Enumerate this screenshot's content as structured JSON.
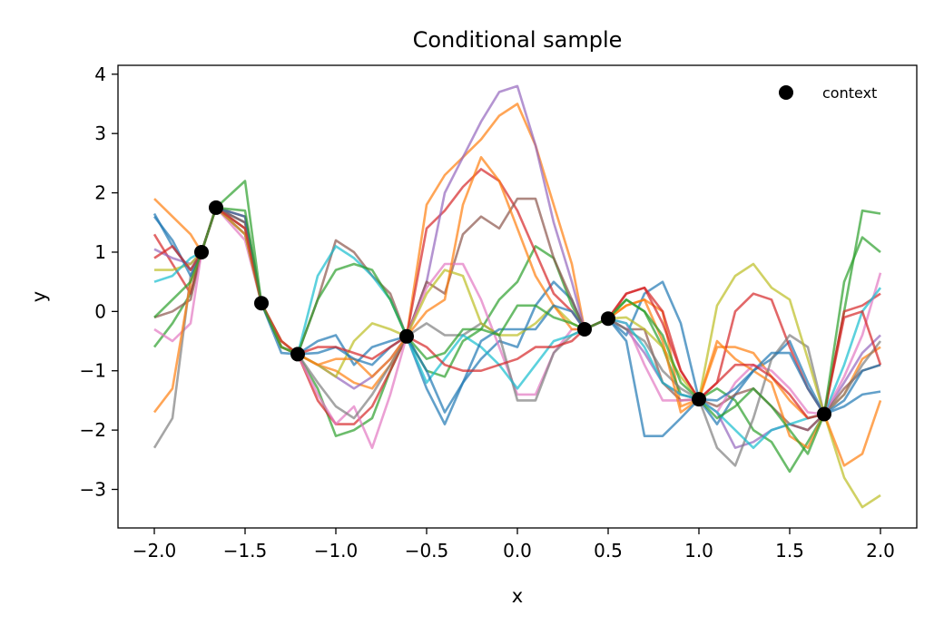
{
  "chart_data": {
    "type": "line",
    "title": "Conditional sample",
    "xlabel": "x",
    "ylabel": "y",
    "xlim": [
      -2.2,
      2.2
    ],
    "ylim": [
      -3.65,
      4.15
    ],
    "xticks": [
      -2.0,
      -1.5,
      -1.0,
      -0.5,
      0.0,
      0.5,
      1.0,
      1.5,
      2.0
    ],
    "xtick_labels": [
      "−2.0",
      "−1.5",
      "−1.0",
      "−0.5",
      "0.0",
      "0.5",
      "1.0",
      "1.5",
      "2.0"
    ],
    "yticks": [
      -3,
      -2,
      -1,
      0,
      1,
      2,
      3,
      4
    ],
    "ytick_labels": [
      "−3",
      "−2",
      "−1",
      "0",
      "1",
      "2",
      "3",
      "4"
    ],
    "grid": false,
    "legend": {
      "position": "top-right",
      "entries": [
        {
          "label": "context",
          "color": "#000000",
          "marker": "circle"
        }
      ]
    },
    "context_points": {
      "x": [
        -1.74,
        -1.66,
        -1.41,
        -1.21,
        -0.61,
        0.37,
        0.5,
        1.0,
        1.69
      ],
      "y": [
        1.0,
        1.75,
        0.14,
        -0.72,
        -0.42,
        -0.3,
        -0.12,
        -1.48,
        -1.73
      ]
    },
    "x": [
      -2.0,
      -1.9,
      -1.8,
      -1.74,
      -1.66,
      -1.5,
      -1.41,
      -1.3,
      -1.21,
      -1.1,
      -1.0,
      -0.9,
      -0.8,
      -0.7,
      -0.61,
      -0.5,
      -0.4,
      -0.3,
      -0.2,
      -0.1,
      0.0,
      0.1,
      0.2,
      0.3,
      0.37,
      0.5,
      0.6,
      0.7,
      0.8,
      0.9,
      1.0,
      1.1,
      1.2,
      1.3,
      1.4,
      1.5,
      1.6,
      1.69,
      1.8,
      1.9,
      2.0
    ],
    "series": [
      {
        "color": "#1f77b4",
        "values": [
          1.65,
          1.1,
          0.7,
          1.0,
          1.75,
          1.5,
          0.14,
          -0.6,
          -0.72,
          -0.5,
          -0.4,
          -0.9,
          -0.6,
          -0.5,
          -0.42,
          -1.3,
          -1.9,
          -1.2,
          -0.8,
          -0.5,
          -0.6,
          0.1,
          0.5,
          0.2,
          -0.3,
          -0.12,
          -0.4,
          0.3,
          0.5,
          -0.2,
          -1.48,
          -1.9,
          -1.4,
          -1.0,
          -0.8,
          -0.5,
          -1.2,
          -1.73,
          -1.6,
          -1.4,
          -1.35
        ]
      },
      {
        "color": "#ff7f0e",
        "values": [
          1.9,
          1.6,
          1.3,
          1.0,
          1.75,
          1.4,
          0.14,
          -0.5,
          -0.72,
          -0.9,
          -1.0,
          -1.2,
          -1.3,
          -0.9,
          -0.42,
          1.8,
          2.3,
          2.6,
          2.9,
          3.3,
          3.5,
          2.8,
          1.8,
          0.8,
          -0.3,
          -0.12,
          0.1,
          0.2,
          0.0,
          -1.6,
          -1.48,
          -0.6,
          -0.6,
          -0.7,
          -1.1,
          -1.5,
          -1.8,
          -1.73,
          -1.4,
          -0.8,
          -0.6
        ]
      },
      {
        "color": "#2ca02c",
        "values": [
          -0.6,
          -0.2,
          0.3,
          1.0,
          1.75,
          2.2,
          0.14,
          -0.6,
          -0.72,
          -1.3,
          -2.1,
          -2.0,
          -1.8,
          -1.0,
          -0.42,
          -1.0,
          -1.1,
          -0.5,
          -0.3,
          0.2,
          0.5,
          1.1,
          0.9,
          0.1,
          -0.3,
          -0.12,
          0.2,
          0.0,
          -0.6,
          -1.4,
          -1.48,
          -1.3,
          -1.5,
          -2.0,
          -2.2,
          -2.7,
          -2.2,
          -1.73,
          0.0,
          1.7,
          1.65
        ]
      },
      {
        "color": "#d62728",
        "values": [
          1.3,
          0.8,
          0.3,
          1.0,
          1.75,
          1.6,
          0.14,
          -0.6,
          -0.72,
          -1.5,
          -1.9,
          -1.9,
          -1.6,
          -1.0,
          -0.42,
          1.4,
          1.7,
          2.1,
          2.4,
          2.2,
          1.7,
          1.0,
          0.3,
          0.0,
          -0.3,
          -0.12,
          0.3,
          0.4,
          0.0,
          -1.0,
          -1.48,
          -1.2,
          0.0,
          0.3,
          0.2,
          -0.6,
          -1.3,
          -1.73,
          0.0,
          0.1,
          0.3
        ]
      },
      {
        "color": "#9467bd",
        "values": [
          1.05,
          0.9,
          0.8,
          1.0,
          1.75,
          1.3,
          0.14,
          -0.5,
          -0.72,
          -0.9,
          -1.1,
          -1.3,
          -1.1,
          -0.8,
          -0.42,
          0.5,
          2.0,
          2.6,
          3.2,
          3.7,
          3.8,
          2.8,
          1.5,
          0.5,
          -0.3,
          -0.12,
          -0.3,
          -0.7,
          -1.2,
          -1.4,
          -1.48,
          -1.7,
          -2.3,
          -2.2,
          -2.0,
          -1.9,
          -2.0,
          -1.73,
          -1.2,
          -0.7,
          -0.4
        ]
      },
      {
        "color": "#8c564b",
        "values": [
          -0.1,
          0.0,
          0.2,
          1.0,
          1.75,
          1.5,
          0.14,
          -0.6,
          -0.72,
          0.2,
          1.2,
          1.0,
          0.6,
          0.3,
          -0.42,
          0.5,
          0.3,
          1.3,
          1.6,
          1.4,
          1.9,
          1.9,
          0.9,
          0.2,
          -0.3,
          -0.12,
          -0.3,
          -0.3,
          -1.2,
          -1.5,
          -1.48,
          -1.6,
          -1.4,
          -1.3,
          -1.6,
          -1.9,
          -2.0,
          -1.73,
          -1.3,
          -1.0,
          -0.9
        ]
      },
      {
        "color": "#e377c2",
        "values": [
          -0.3,
          -0.5,
          -0.2,
          1.0,
          1.75,
          1.2,
          0.14,
          -0.5,
          -0.72,
          -1.4,
          -1.9,
          -1.6,
          -2.3,
          -1.4,
          -0.42,
          0.4,
          0.8,
          0.8,
          0.2,
          -0.6,
          -1.4,
          -1.4,
          -0.7,
          -0.3,
          -0.3,
          -0.12,
          -0.2,
          -0.9,
          -1.5,
          -1.5,
          -1.48,
          -1.7,
          -1.2,
          -0.9,
          -1.0,
          -1.3,
          -1.7,
          -1.73,
          -1.1,
          -0.4,
          0.65
        ]
      },
      {
        "color": "#7f7f7f",
        "values": [
          -2.3,
          -1.8,
          0.6,
          1.0,
          1.75,
          1.4,
          0.14,
          -0.6,
          -0.72,
          -1.2,
          -1.6,
          -1.8,
          -1.4,
          -0.9,
          -0.42,
          -0.2,
          -0.4,
          -0.4,
          -0.2,
          -0.4,
          -1.5,
          -1.5,
          -0.7,
          -0.4,
          -0.3,
          -0.12,
          -0.3,
          -0.5,
          -1.0,
          -1.3,
          -1.48,
          -2.3,
          -2.6,
          -1.8,
          -0.8,
          -0.4,
          -0.6,
          -1.73,
          -1.4,
          -0.9,
          -0.5
        ]
      },
      {
        "color": "#bcbd22",
        "values": [
          0.7,
          0.7,
          0.8,
          1.0,
          1.75,
          1.3,
          0.14,
          -0.5,
          -0.72,
          -0.9,
          -1.1,
          -0.5,
          -0.2,
          -0.3,
          -0.42,
          0.3,
          0.7,
          0.6,
          -0.2,
          -0.4,
          -0.4,
          -0.2,
          0.1,
          -0.2,
          -0.3,
          -0.12,
          -0.1,
          -0.3,
          -0.6,
          -1.1,
          -1.48,
          0.1,
          0.6,
          0.8,
          0.4,
          0.2,
          -0.8,
          -1.73,
          -2.8,
          -3.3,
          -3.1
        ]
      },
      {
        "color": "#17becf",
        "values": [
          0.5,
          0.6,
          0.9,
          1.0,
          1.75,
          1.3,
          0.14,
          -0.6,
          -0.72,
          0.6,
          1.1,
          0.9,
          0.6,
          0.2,
          -0.42,
          -1.2,
          -0.8,
          -0.4,
          -0.6,
          -0.9,
          -1.3,
          -0.9,
          -0.5,
          -0.4,
          -0.3,
          -0.12,
          -0.2,
          -0.6,
          -1.2,
          -1.4,
          -1.48,
          -1.7,
          -2.0,
          -2.3,
          -2.0,
          -1.9,
          -1.8,
          -1.73,
          -0.9,
          0.0,
          0.4
        ]
      },
      {
        "color": "#ff7f0e",
        "values": [
          -1.7,
          -1.3,
          0.5,
          1.0,
          1.75,
          1.3,
          0.14,
          -0.6,
          -0.72,
          -0.9,
          -0.8,
          -0.8,
          -1.1,
          -0.8,
          -0.42,
          0.0,
          0.2,
          1.8,
          2.6,
          2.2,
          1.4,
          0.6,
          0.1,
          -0.3,
          -0.3,
          -0.12,
          0.1,
          0.2,
          -0.5,
          -1.7,
          -1.48,
          -0.5,
          -0.8,
          -1.0,
          -1.2,
          -2.1,
          -2.3,
          -1.73,
          -2.6,
          -2.4,
          -1.5
        ]
      },
      {
        "color": "#1f77b4",
        "values": [
          1.6,
          1.2,
          0.6,
          1.0,
          1.75,
          1.6,
          0.14,
          -0.7,
          -0.72,
          -0.7,
          -0.6,
          -0.8,
          -0.9,
          -0.6,
          -0.42,
          -1.0,
          -1.7,
          -1.2,
          -0.5,
          -0.3,
          -0.3,
          -0.3,
          0.1,
          0.0,
          -0.3,
          -0.12,
          -0.5,
          -2.1,
          -2.1,
          -1.8,
          -1.48,
          -1.5,
          -1.3,
          -1.0,
          -0.7,
          -0.7,
          -1.3,
          -1.73,
          -1.5,
          -1.0,
          -0.9
        ]
      },
      {
        "color": "#d62728",
        "values": [
          0.9,
          1.1,
          0.7,
          1.0,
          1.75,
          1.4,
          0.14,
          -0.5,
          -0.72,
          -0.6,
          -0.6,
          -0.7,
          -0.8,
          -0.6,
          -0.42,
          -0.6,
          -0.9,
          -1.0,
          -1.0,
          -0.9,
          -0.8,
          -0.6,
          -0.6,
          -0.5,
          -0.3,
          -0.12,
          0.3,
          0.4,
          -0.2,
          -1.0,
          -1.48,
          -1.2,
          -0.9,
          -0.9,
          -1.1,
          -1.4,
          -1.8,
          -1.73,
          -0.1,
          0.0,
          -0.9
        ]
      },
      {
        "color": "#2ca02c",
        "values": [
          -0.1,
          0.2,
          0.5,
          1.0,
          1.75,
          1.7,
          0.14,
          -0.6,
          -0.72,
          0.2,
          0.7,
          0.8,
          0.7,
          0.2,
          -0.42,
          -0.8,
          -0.7,
          -0.3,
          -0.3,
          -0.4,
          0.1,
          0.1,
          -0.1,
          -0.2,
          -0.3,
          -0.12,
          0.2,
          0.0,
          -0.4,
          -1.2,
          -1.48,
          -1.8,
          -1.6,
          -1.3,
          -1.6,
          -2.0,
          -2.4,
          -1.73,
          0.5,
          1.25,
          1.0
        ]
      }
    ]
  }
}
